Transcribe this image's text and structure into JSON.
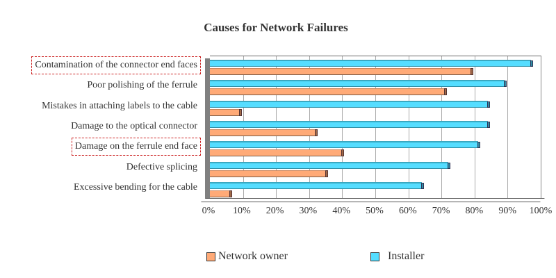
{
  "chart_data": {
    "type": "bar",
    "orientation": "horizontal",
    "title": "Causes for Network Failures",
    "categories": [
      "Contamination of the connector end faces",
      "Poor polishing of the ferrule",
      "Mistakes in attaching labels to the cable",
      "Damage to the optical connector",
      "Damage on the ferrule end face",
      "Defective splicing",
      "Excessive bending for the cable"
    ],
    "highlighted_categories": [
      "Contamination of the connector end faces",
      "Damage on the ferrule end face"
    ],
    "series": [
      {
        "name": "Installer",
        "color": "#55ddff",
        "values": [
          97,
          89,
          84,
          84,
          81,
          72,
          64
        ]
      },
      {
        "name": "Network owner",
        "color": "#ffaa77",
        "values": [
          79,
          71,
          9,
          32,
          40,
          35,
          6
        ]
      }
    ],
    "xlabel": "",
    "ylabel": "",
    "xlim": [
      0,
      100
    ],
    "x_ticks": [
      "0%",
      "10%",
      "20%",
      "30%",
      "40%",
      "50%",
      "60%",
      "70%",
      "80%",
      "90%",
      "100%"
    ],
    "grid": true,
    "legend_position": "bottom",
    "legend": [
      "Network owner",
      "Installer"
    ]
  }
}
